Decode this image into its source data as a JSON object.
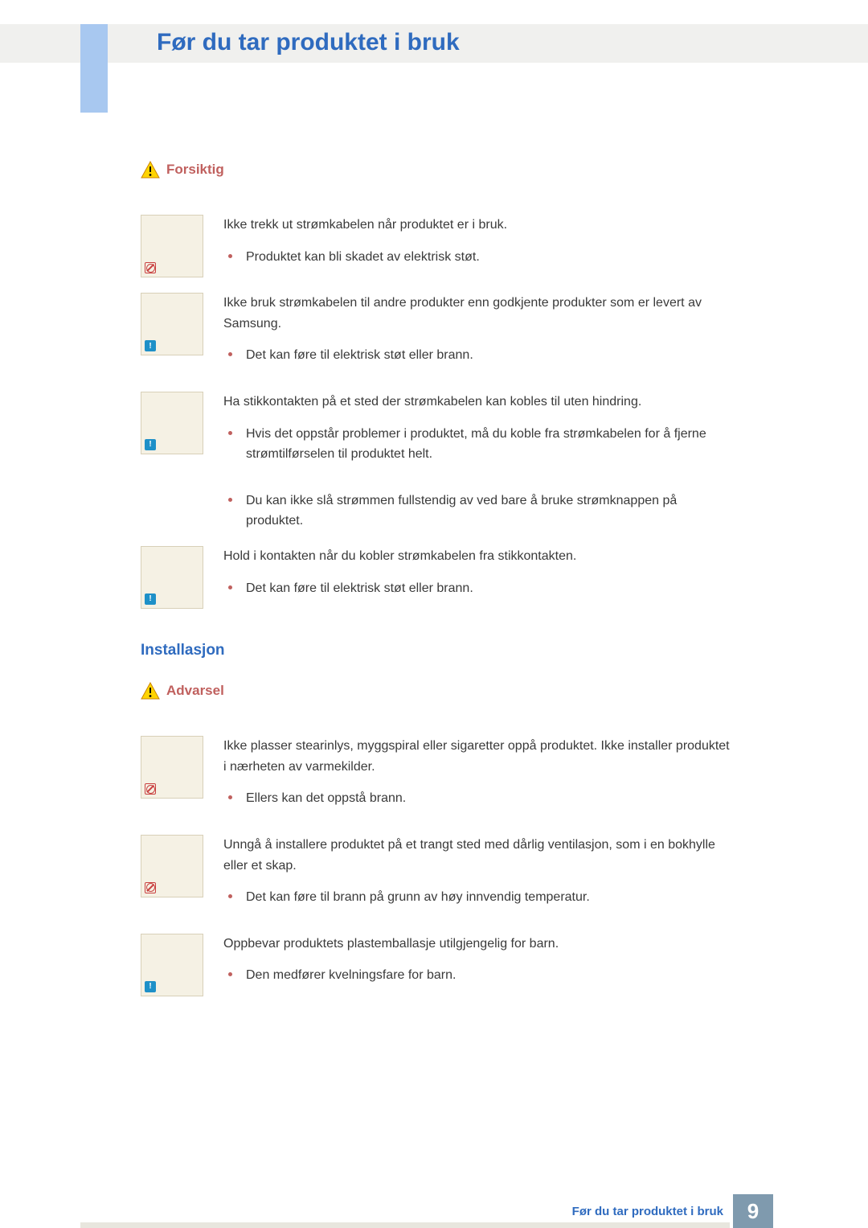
{
  "colors": {
    "title_blue": "#2f6bbf",
    "warning_red": "#c0605e",
    "header_bg": "#f0f0ee",
    "side_tab": "#a8c8f0",
    "thumb_bg": "#f5f1e4",
    "thumb_border": "#d8d0b8",
    "text": "#3a3a3a",
    "bullet": "#c0605e",
    "footer_box": "#7f9aae",
    "footer_bar": "#e8e6de"
  },
  "page": {
    "title": "Før du tar produktet i bruk",
    "footer_label": "Før du tar produktet i bruk",
    "page_number": "9"
  },
  "sections": {
    "caution_label": "Forsiktig",
    "install_title": "Installasjon",
    "warning_label": "Advarsel"
  },
  "caution_items": [
    {
      "badge": "red",
      "lead": "Ikke trekk ut strømkabelen når produktet er i bruk.",
      "bullets": [
        "Produktet kan bli skadet av elektrisk støt."
      ]
    },
    {
      "badge": "blue",
      "lead": "Ikke bruk strømkabelen til andre produkter enn godkjente produkter som er levert av Samsung.",
      "bullets": [
        "Det kan føre til elektrisk støt eller brann."
      ]
    },
    {
      "badge": "blue",
      "lead": "Ha stikkontakten på et sted der strømkabelen kan kobles til uten hindring.",
      "bullets": [
        "Hvis det oppstår problemer i produktet, må du koble fra strømkabelen for å fjerne strømtilførselen til produktet helt."
      ],
      "extra_bullets": [
        "Du kan ikke slå strømmen fullstendig av ved bare å bruke strømknappen på produktet."
      ]
    },
    {
      "badge": "blue",
      "lead": "Hold i kontakten når du kobler strømkabelen fra stikkontakten.",
      "bullets": [
        "Det kan føre til elektrisk støt eller brann."
      ]
    }
  ],
  "warning_items": [
    {
      "badge": "red",
      "lead": "Ikke plasser stearinlys, myggspiral eller sigaretter oppå produktet. Ikke installer produktet i nærheten av varmekilder.",
      "bullets": [
        "Ellers kan det oppstå brann."
      ]
    },
    {
      "badge": "red",
      "lead": "Unngå å installere produktet på et trangt sted med dårlig ventilasjon, som i en bokhylle eller et skap.",
      "bullets": [
        "Det kan føre til brann på grunn av høy innvendig temperatur."
      ]
    },
    {
      "badge": "blue",
      "lead": "Oppbevar produktets plastemballasje utilgjengelig for barn.",
      "bullets": [
        "Den medfører kvelningsfare for barn."
      ]
    }
  ]
}
